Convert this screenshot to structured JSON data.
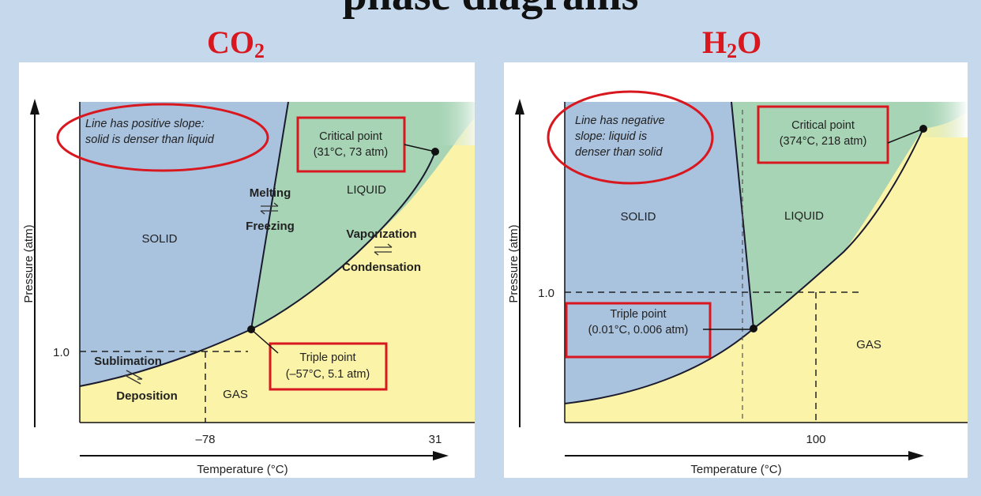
{
  "header": {
    "text": "phase diagrams"
  },
  "diagrams": [
    {
      "title_main": "CO",
      "title_sub": "2",
      "y_axis_label": "Pressure (atm)",
      "x_axis_label": "Temperature (°C)",
      "x_ticks": [
        "–78",
        "31"
      ],
      "y_ticks": [
        "1.0"
      ],
      "regions": {
        "solid": "SOLID",
        "liquid": "LIQUID",
        "gas": "GAS"
      },
      "transitions": {
        "melting": "Melting",
        "freezing": "Freezing",
        "vaporization": "Vaporization",
        "condensation": "Condensation",
        "sublimation": "Sublimation",
        "deposition": "Deposition"
      },
      "note": [
        "Line has positive slope:",
        "solid is denser than liquid"
      ],
      "critical_point": [
        "Critical point",
        "(31°C, 73 atm)"
      ],
      "triple_point": [
        "Triple point",
        "(–57°C, 5.1 atm)"
      ],
      "colors": {
        "solid": "#a9c2de",
        "liquid": "#a7d4b5",
        "gas": "#faf3a8",
        "highlight": "#d8171e"
      }
    },
    {
      "title_main": "H",
      "title_sub": "2",
      "title_end": "O",
      "y_axis_label": "Pressure (atm)",
      "x_axis_label": "Temperature (°C)",
      "x_ticks": [
        "100"
      ],
      "y_ticks": [
        "1.0"
      ],
      "regions": {
        "solid": "SOLID",
        "liquid": "LIQUID",
        "gas": "GAS"
      },
      "note": [
        "Line has negative",
        "slope: liquid is",
        "denser than solid"
      ],
      "critical_point": [
        "Critical point",
        "(374°C, 218 atm)"
      ],
      "triple_point": [
        "Triple point",
        "(0.01°C, 0.006 atm)"
      ],
      "colors": {
        "solid": "#a9c2de",
        "liquid": "#a7d4b5",
        "gas": "#faf3a8",
        "highlight": "#d8171e"
      }
    }
  ]
}
